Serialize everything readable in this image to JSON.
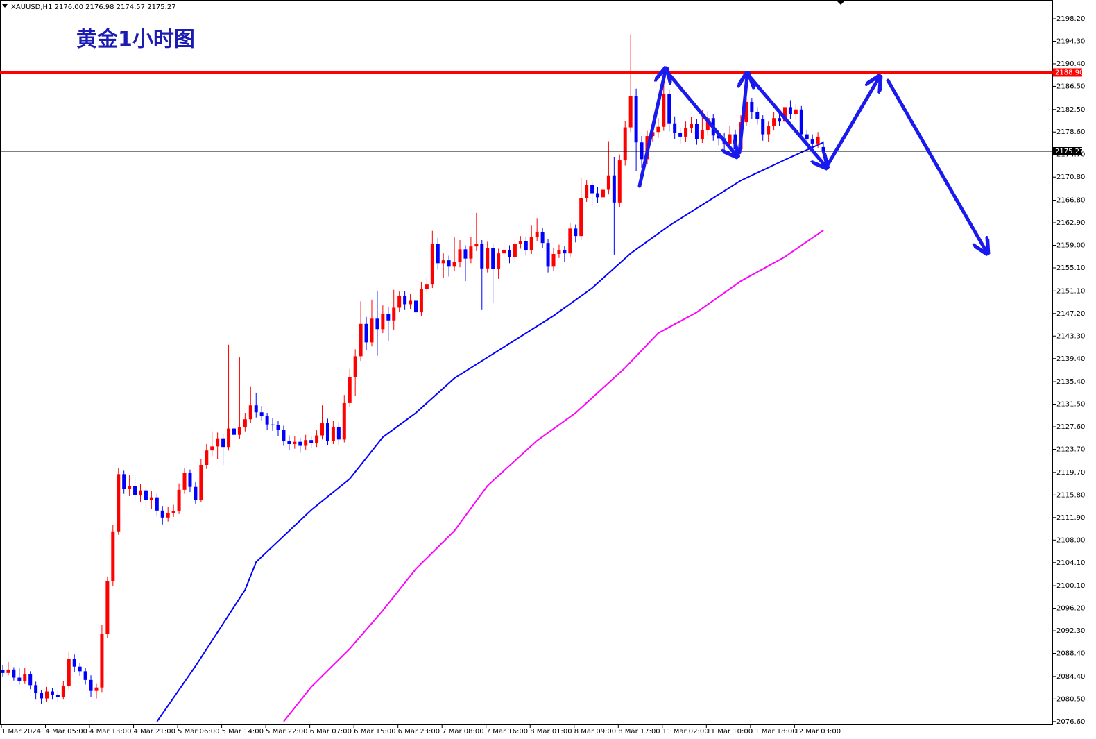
{
  "chart_data": {
    "type": "candlestick",
    "header": "XAUUSD,H1  2176.00 2176.98 2174.57 2175.27",
    "title": "黄金1小时图",
    "up_color": "#ff0000",
    "down_color": "#0000ff",
    "ylim": [
      2075.98,
      2201.44
    ],
    "yticks": [
      {
        "value": 2198.2,
        "label": "2198.20"
      },
      {
        "value": 2194.3,
        "label": "2194.30"
      },
      {
        "value": 2190.4,
        "label": "2190.40"
      },
      {
        "value": 2186.5,
        "label": "2186.50"
      },
      {
        "value": 2182.5,
        "label": "2182.50"
      },
      {
        "value": 2178.6,
        "label": "2178.60"
      },
      {
        "value": 2174.7,
        "label": "2174.70"
      },
      {
        "value": 2170.8,
        "label": "2170.80"
      },
      {
        "value": 2166.8,
        "label": "2166.80"
      },
      {
        "value": 2162.9,
        "label": "2162.90"
      },
      {
        "value": 2159,
        "label": "2159.00"
      },
      {
        "value": 2155.1,
        "label": "2155.10"
      },
      {
        "value": 2151.1,
        "label": "2151.10"
      },
      {
        "value": 2147.2,
        "label": "2147.20"
      },
      {
        "value": 2143.3,
        "label": "2143.30"
      },
      {
        "value": 2139.4,
        "label": "2139.40"
      },
      {
        "value": 2135.4,
        "label": "2135.40"
      },
      {
        "value": 2131.5,
        "label": "2131.50"
      },
      {
        "value": 2127.6,
        "label": "2127.60"
      },
      {
        "value": 2123.7,
        "label": "2123.70"
      },
      {
        "value": 2119.7,
        "label": "2119.70"
      },
      {
        "value": 2115.8,
        "label": "2115.80"
      },
      {
        "value": 2111.9,
        "label": "2111.90"
      },
      {
        "value": 2108,
        "label": "2108.00"
      },
      {
        "value": 2104.1,
        "label": "2104.10"
      },
      {
        "value": 2100.1,
        "label": "2100.10"
      },
      {
        "value": 2096.2,
        "label": "2096.20"
      },
      {
        "value": 2092.3,
        "label": "2092.30"
      },
      {
        "value": 2088.4,
        "label": "2088.40"
      },
      {
        "value": 2084.4,
        "label": "2084.40"
      },
      {
        "value": 2080.5,
        "label": "2080.50"
      },
      {
        "value": 2076.6,
        "label": "2076.60"
      }
    ],
    "hlines": [
      {
        "value": 2188.9,
        "label": "2188.90",
        "color": "#ff0000"
      },
      {
        "value": 2175.27,
        "label": "2175.27",
        "color": "#000000"
      }
    ],
    "categories": [
      "1 Mar 2024",
      null,
      null,
      null,
      null,
      null,
      null,
      null,
      "4 Mar 05:00",
      null,
      null,
      null,
      null,
      null,
      null,
      null,
      "4 Mar 13:00",
      null,
      null,
      null,
      null,
      null,
      null,
      null,
      "4 Mar 21:00",
      null,
      null,
      null,
      null,
      null,
      null,
      null,
      "5 Mar 06:00",
      null,
      null,
      null,
      null,
      null,
      null,
      null,
      "5 Mar 14:00",
      null,
      null,
      null,
      null,
      null,
      null,
      null,
      "5 Mar 22:00",
      null,
      null,
      null,
      null,
      null,
      null,
      null,
      "6 Mar 07:00",
      null,
      null,
      null,
      null,
      null,
      null,
      null,
      "6 Mar 15:00",
      null,
      null,
      null,
      null,
      null,
      null,
      null,
      "6 Mar 23:00",
      null,
      null,
      null,
      null,
      null,
      null,
      null,
      "7 Mar 08:00",
      null,
      null,
      null,
      null,
      null,
      null,
      null,
      "7 Mar 16:00",
      null,
      null,
      null,
      null,
      null,
      null,
      null,
      "8 Mar 01:00",
      null,
      null,
      null,
      null,
      null,
      null,
      null,
      "8 Mar 09:00",
      null,
      null,
      null,
      null,
      null,
      null,
      null,
      "8 Mar 17:00",
      null,
      null,
      null,
      null,
      null,
      null,
      null,
      "11 Mar 02:00",
      null,
      null,
      null,
      null,
      null,
      null,
      null,
      "11 Mar 10:00",
      null,
      null,
      null,
      null,
      null,
      null,
      null,
      "11 Mar 18:00",
      null,
      null,
      null,
      null,
      null,
      null,
      null,
      "12 Mar 03:00",
      null,
      null,
      null,
      null,
      null
    ],
    "ohlc": [
      [
        2085.5,
        2086.4,
        2084.3,
        2085.0
      ],
      [
        2085.0,
        2086.9,
        2084.6,
        2085.6
      ],
      [
        2085.6,
        2086.0,
        2083.7,
        2084.2
      ],
      [
        2084.2,
        2085.8,
        2083.0,
        2083.6
      ],
      [
        2083.6,
        2085.9,
        2083.1,
        2084.8
      ],
      [
        2084.8,
        2085.3,
        2082.2,
        2082.9
      ],
      [
        2082.9,
        2083.5,
        2080.4,
        2081.5
      ],
      [
        2081.5,
        2082.1,
        2079.6,
        2080.6
      ],
      [
        2080.6,
        2082.6,
        2080.0,
        2081.8
      ],
      [
        2081.8,
        2082.4,
        2080.4,
        2081.2
      ],
      [
        2081.2,
        2081.9,
        2080.1,
        2080.9
      ],
      [
        2080.9,
        2083.6,
        2080.4,
        2082.7
      ],
      [
        2082.7,
        2088.6,
        2082.2,
        2087.4
      ],
      [
        2087.4,
        2088.2,
        2085.2,
        2086.1
      ],
      [
        2086.1,
        2086.8,
        2084.5,
        2085.3
      ],
      [
        2085.3,
        2085.9,
        2083.0,
        2083.8
      ],
      [
        2083.8,
        2084.6,
        2080.9,
        2081.9
      ],
      [
        2081.9,
        2083.1,
        2080.6,
        2082.5
      ],
      [
        2082.5,
        2093.3,
        2081.7,
        2091.8
      ],
      [
        2091.8,
        2101.7,
        2091.0,
        2100.9
      ],
      [
        2100.9,
        2110.6,
        2100.0,
        2109.5
      ],
      [
        2109.5,
        2120.4,
        2108.9,
        2119.4
      ],
      [
        2119.4,
        2120.0,
        2116.0,
        2116.9
      ],
      [
        2116.9,
        2119.2,
        2115.6,
        2117.3
      ],
      [
        2117.3,
        2118.8,
        2114.9,
        2115.8
      ],
      [
        2115.8,
        2117.7,
        2114.6,
        2116.6
      ],
      [
        2116.6,
        2117.4,
        2113.6,
        2114.9
      ],
      [
        2114.9,
        2116.5,
        2113.4,
        2115.4
      ],
      [
        2115.4,
        2116.0,
        2112.1,
        2113.1
      ],
      [
        2113.1,
        2113.9,
        2110.7,
        2111.9
      ],
      [
        2111.9,
        2113.8,
        2111.2,
        2112.6
      ],
      [
        2112.6,
        2114.1,
        2112.0,
        2113.0
      ],
      [
        2113.0,
        2117.8,
        2112.5,
        2116.7
      ],
      [
        2116.7,
        2120.4,
        2116.0,
        2119.6
      ],
      [
        2119.6,
        2120.2,
        2116.3,
        2117.2
      ],
      [
        2117.2,
        2118.0,
        2114.3,
        2115.0
      ],
      [
        2115.0,
        2122.0,
        2114.6,
        2121.0
      ],
      [
        2121.0,
        2124.6,
        2120.3,
        2123.5
      ],
      [
        2123.5,
        2126.8,
        2122.6,
        2124.2
      ],
      [
        2124.2,
        2126.6,
        2122.0,
        2125.6
      ],
      [
        2125.6,
        2126.4,
        2121.0,
        2124.1
      ],
      [
        2124.1,
        2141.8,
        2123.5,
        2127.3
      ],
      [
        2127.3,
        2128.3,
        2123.4,
        2126.2
      ],
      [
        2126.2,
        2139.6,
        2125.5,
        2127.5
      ],
      [
        2127.5,
        2130.0,
        2126.8,
        2128.9
      ],
      [
        2128.9,
        2134.6,
        2128.3,
        2131.3
      ],
      [
        2131.3,
        2133.5,
        2129.2,
        2130.1
      ],
      [
        2130.1,
        2131.2,
        2128.6,
        2129.4
      ],
      [
        2129.4,
        2130.0,
        2127.0,
        2128.0
      ],
      [
        2128.0,
        2129.1,
        2126.9,
        2127.9
      ],
      [
        2127.9,
        2128.6,
        2126.0,
        2127.1
      ],
      [
        2127.1,
        2127.8,
        2124.3,
        2125.2
      ],
      [
        2125.2,
        2126.1,
        2123.5,
        2124.6
      ],
      [
        2124.6,
        2126.0,
        2123.8,
        2125.0
      ],
      [
        2125.0,
        2125.7,
        2123.1,
        2124.3
      ],
      [
        2124.3,
        2126.2,
        2123.6,
        2125.3
      ],
      [
        2125.3,
        2126.0,
        2123.9,
        2124.8
      ],
      [
        2124.8,
        2127.0,
        2124.1,
        2126.1
      ],
      [
        2126.1,
        2131.3,
        2125.4,
        2128.2
      ],
      [
        2128.2,
        2129.0,
        2124.4,
        2125.2
      ],
      [
        2125.2,
        2128.6,
        2124.6,
        2127.6
      ],
      [
        2127.6,
        2128.4,
        2124.5,
        2125.4
      ],
      [
        2125.4,
        2133.1,
        2124.9,
        2131.7
      ],
      [
        2131.7,
        2137.6,
        2131.0,
        2136.2
      ],
      [
        2136.2,
        2141.0,
        2133.0,
        2139.8
      ],
      [
        2139.8,
        2149.3,
        2139.0,
        2145.4
      ],
      [
        2145.4,
        2146.6,
        2140.9,
        2142.2
      ],
      [
        2142.2,
        2149.6,
        2141.5,
        2146.3
      ],
      [
        2146.3,
        2151.1,
        2139.9,
        2144.5
      ],
      [
        2144.5,
        2148.6,
        2143.8,
        2147.1
      ],
      [
        2147.1,
        2148.3,
        2142.5,
        2146.0
      ],
      [
        2146.0,
        2151.3,
        2144.4,
        2148.2
      ],
      [
        2148.2,
        2151.0,
        2147.4,
        2150.3
      ],
      [
        2150.3,
        2151.1,
        2147.8,
        2148.8
      ],
      [
        2148.8,
        2150.6,
        2147.9,
        2149.4
      ],
      [
        2149.4,
        2150.0,
        2145.9,
        2147.4
      ],
      [
        2147.4,
        2152.7,
        2146.8,
        2151.4
      ],
      [
        2151.4,
        2153.4,
        2150.8,
        2152.2
      ],
      [
        2152.2,
        2161.5,
        2151.6,
        2159.2
      ],
      [
        2159.2,
        2160.3,
        2154.8,
        2155.9
      ],
      [
        2155.9,
        2157.6,
        2153.4,
        2156.4
      ],
      [
        2156.4,
        2157.2,
        2153.6,
        2155.3
      ],
      [
        2155.3,
        2160.4,
        2154.5,
        2156.1
      ],
      [
        2156.1,
        2159.9,
        2155.2,
        2158.3
      ],
      [
        2158.3,
        2159.0,
        2152.8,
        2156.7
      ],
      [
        2156.7,
        2160.5,
        2155.9,
        2158.8
      ],
      [
        2158.8,
        2164.6,
        2158.0,
        2159.3
      ],
      [
        2159.3,
        2159.9,
        2147.8,
        2155.0
      ],
      [
        2155.0,
        2159.6,
        2154.3,
        2158.5
      ],
      [
        2158.5,
        2159.2,
        2149.0,
        2154.9
      ],
      [
        2154.9,
        2158.4,
        2153.2,
        2157.6
      ],
      [
        2157.6,
        2159.5,
        2156.6,
        2158.1
      ],
      [
        2158.1,
        2159.0,
        2155.9,
        2157.0
      ],
      [
        2157.0,
        2160.0,
        2156.1,
        2159.2
      ],
      [
        2159.2,
        2160.6,
        2158.4,
        2159.7
      ],
      [
        2159.7,
        2160.5,
        2157.2,
        2158.2
      ],
      [
        2158.2,
        2162.5,
        2157.5,
        2160.4
      ],
      [
        2160.4,
        2163.7,
        2159.7,
        2161.3
      ],
      [
        2161.3,
        2162.0,
        2158.5,
        2159.4
      ],
      [
        2159.4,
        2160.1,
        2154.3,
        2155.3
      ],
      [
        2155.3,
        2158.6,
        2154.5,
        2157.5
      ],
      [
        2157.5,
        2159.1,
        2156.8,
        2158.2
      ],
      [
        2158.2,
        2158.9,
        2156.1,
        2157.6
      ],
      [
        2157.6,
        2162.8,
        2156.9,
        2161.9
      ],
      [
        2161.9,
        2162.6,
        2159.5,
        2160.6
      ],
      [
        2160.6,
        2170.7,
        2159.9,
        2167.2
      ],
      [
        2167.2,
        2170.3,
        2166.5,
        2169.4
      ],
      [
        2169.4,
        2170.0,
        2165.7,
        2168.0
      ],
      [
        2168.0,
        2169.1,
        2166.3,
        2167.3
      ],
      [
        2167.3,
        2169.5,
        2166.5,
        2168.6
      ],
      [
        2168.6,
        2177.0,
        2167.8,
        2171.1
      ],
      [
        2171.1,
        2174.3,
        2157.4,
        2166.4
      ],
      [
        2166.4,
        2174.7,
        2165.6,
        2173.7
      ],
      [
        2173.7,
        2180.5,
        2172.8,
        2179.4
      ],
      [
        2179.4,
        2195.5,
        2178.6,
        2184.8
      ],
      [
        2184.8,
        2186.1,
        2171.8,
        2176.8
      ],
      [
        2176.8,
        2177.9,
        2172.4,
        2173.9
      ],
      [
        2173.9,
        2178.8,
        2173.1,
        2177.9
      ],
      [
        2177.9,
        2179.9,
        2176.9,
        2178.6
      ],
      [
        2178.6,
        2181.0,
        2177.6,
        2179.5
      ],
      [
        2179.5,
        2188.2,
        2178.8,
        2185.2
      ],
      [
        2185.2,
        2186.0,
        2178.7,
        2180.1
      ],
      [
        2180.1,
        2181.3,
        2177.4,
        2178.5
      ],
      [
        2178.5,
        2179.3,
        2176.6,
        2177.8
      ],
      [
        2177.8,
        2180.4,
        2176.9,
        2179.3
      ],
      [
        2179.3,
        2181.2,
        2178.4,
        2180.0
      ],
      [
        2180.0,
        2180.8,
        2176.4,
        2177.4
      ],
      [
        2177.4,
        2182.4,
        2176.7,
        2178.9
      ],
      [
        2178.9,
        2182.2,
        2178.0,
        2181.0
      ],
      [
        2181.0,
        2181.7,
        2177.1,
        2178.0
      ],
      [
        2178.0,
        2178.9,
        2176.3,
        2177.5
      ],
      [
        2177.5,
        2178.4,
        2175.2,
        2176.6
      ],
      [
        2176.6,
        2179.6,
        2175.9,
        2178.2
      ],
      [
        2178.2,
        2179.0,
        2174.6,
        2175.6
      ],
      [
        2175.6,
        2181.5,
        2174.9,
        2180.3
      ],
      [
        2180.3,
        2185.1,
        2179.6,
        2183.8
      ],
      [
        2183.8,
        2184.5,
        2180.9,
        2182.1
      ],
      [
        2182.1,
        2182.9,
        2179.9,
        2180.8
      ],
      [
        2180.8,
        2181.5,
        2177.1,
        2178.2
      ],
      [
        2178.2,
        2180.4,
        2176.9,
        2179.6
      ],
      [
        2179.6,
        2182.0,
        2178.9,
        2181.0
      ],
      [
        2181.0,
        2181.9,
        2179.6,
        2180.4
      ],
      [
        2180.4,
        2184.7,
        2179.8,
        2182.9
      ],
      [
        2182.9,
        2184.1,
        2180.8,
        2181.7
      ],
      [
        2181.7,
        2183.4,
        2180.9,
        2182.5
      ],
      [
        2182.5,
        2183.1,
        2177.3,
        2178.2
      ],
      [
        2178.2,
        2179.0,
        2176.5,
        2177.3
      ],
      [
        2177.3,
        2178.2,
        2175.8,
        2176.6
      ],
      [
        2176.6,
        2178.6,
        2175.9,
        2177.8
      ],
      [
        2176.0,
        2176.98,
        2174.57,
        2175.27
      ]
    ],
    "indicators": [
      {
        "color": "#0000ff",
        "x": [
          28,
          35,
          44,
          46,
          50,
          56,
          63,
          69,
          75,
          82,
          88,
          94,
          100,
          107,
          114,
          121,
          126,
          134,
          142,
          149
        ],
        "values": [
          2076.6,
          2086.2,
          2099.4,
          2104.2,
          2107.8,
          2113.2,
          2118.6,
          2125.8,
          2130.0,
          2136.0,
          2139.6,
          2143.2,
          2146.8,
          2151.6,
          2157.6,
          2162.4,
          2165.4,
          2170.2,
          2173.8,
          2176.8
        ]
      },
      {
        "color": "#ff00ff",
        "x": [
          51,
          56,
          63,
          69,
          75,
          82,
          88,
          97,
          104,
          113,
          119,
          126,
          134,
          142,
          149
        ],
        "values": [
          2076.6,
          2082.6,
          2089.2,
          2095.8,
          2103.0,
          2109.6,
          2117.4,
          2125.2,
          2130.0,
          2137.8,
          2143.8,
          2147.4,
          2152.8,
          2157.0,
          2161.6
        ]
      }
    ]
  }
}
